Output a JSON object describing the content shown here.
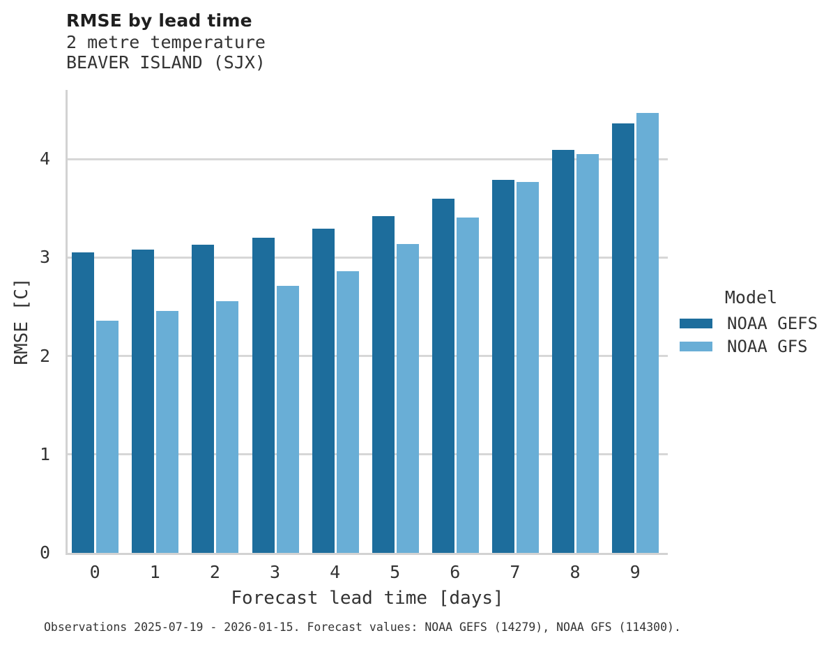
{
  "chart_data": {
    "type": "bar",
    "title": "RMSE by lead time",
    "subtitle": [
      "2 metre temperature",
      "BEAVER ISLAND (SJX)"
    ],
    "xlabel": "Forecast lead time [days]",
    "ylabel": "RMSE [C]",
    "categories": [
      "0",
      "1",
      "2",
      "3",
      "4",
      "5",
      "6",
      "7",
      "8",
      "9"
    ],
    "series": [
      {
        "name": "NOAA GEFS",
        "color": "#1d6d9c",
        "values": [
          3.05,
          3.08,
          3.13,
          3.2,
          3.29,
          3.42,
          3.6,
          3.79,
          4.09,
          4.36
        ]
      },
      {
        "name": "NOAA GFS",
        "color": "#69aed6",
        "values": [
          2.36,
          2.46,
          2.56,
          2.71,
          2.86,
          3.14,
          3.41,
          3.77,
          4.05,
          4.47
        ]
      }
    ],
    "ylim": [
      0,
      4.7
    ],
    "yticks": [
      0,
      1,
      2,
      3,
      4
    ],
    "grid": true,
    "legend": {
      "title": "Model",
      "position": "right-center"
    },
    "caption": "Observations 2025-07-19 - 2026-01-15. Forecast values: NOAA GEFS (14279), NOAA GFS (114300)."
  }
}
